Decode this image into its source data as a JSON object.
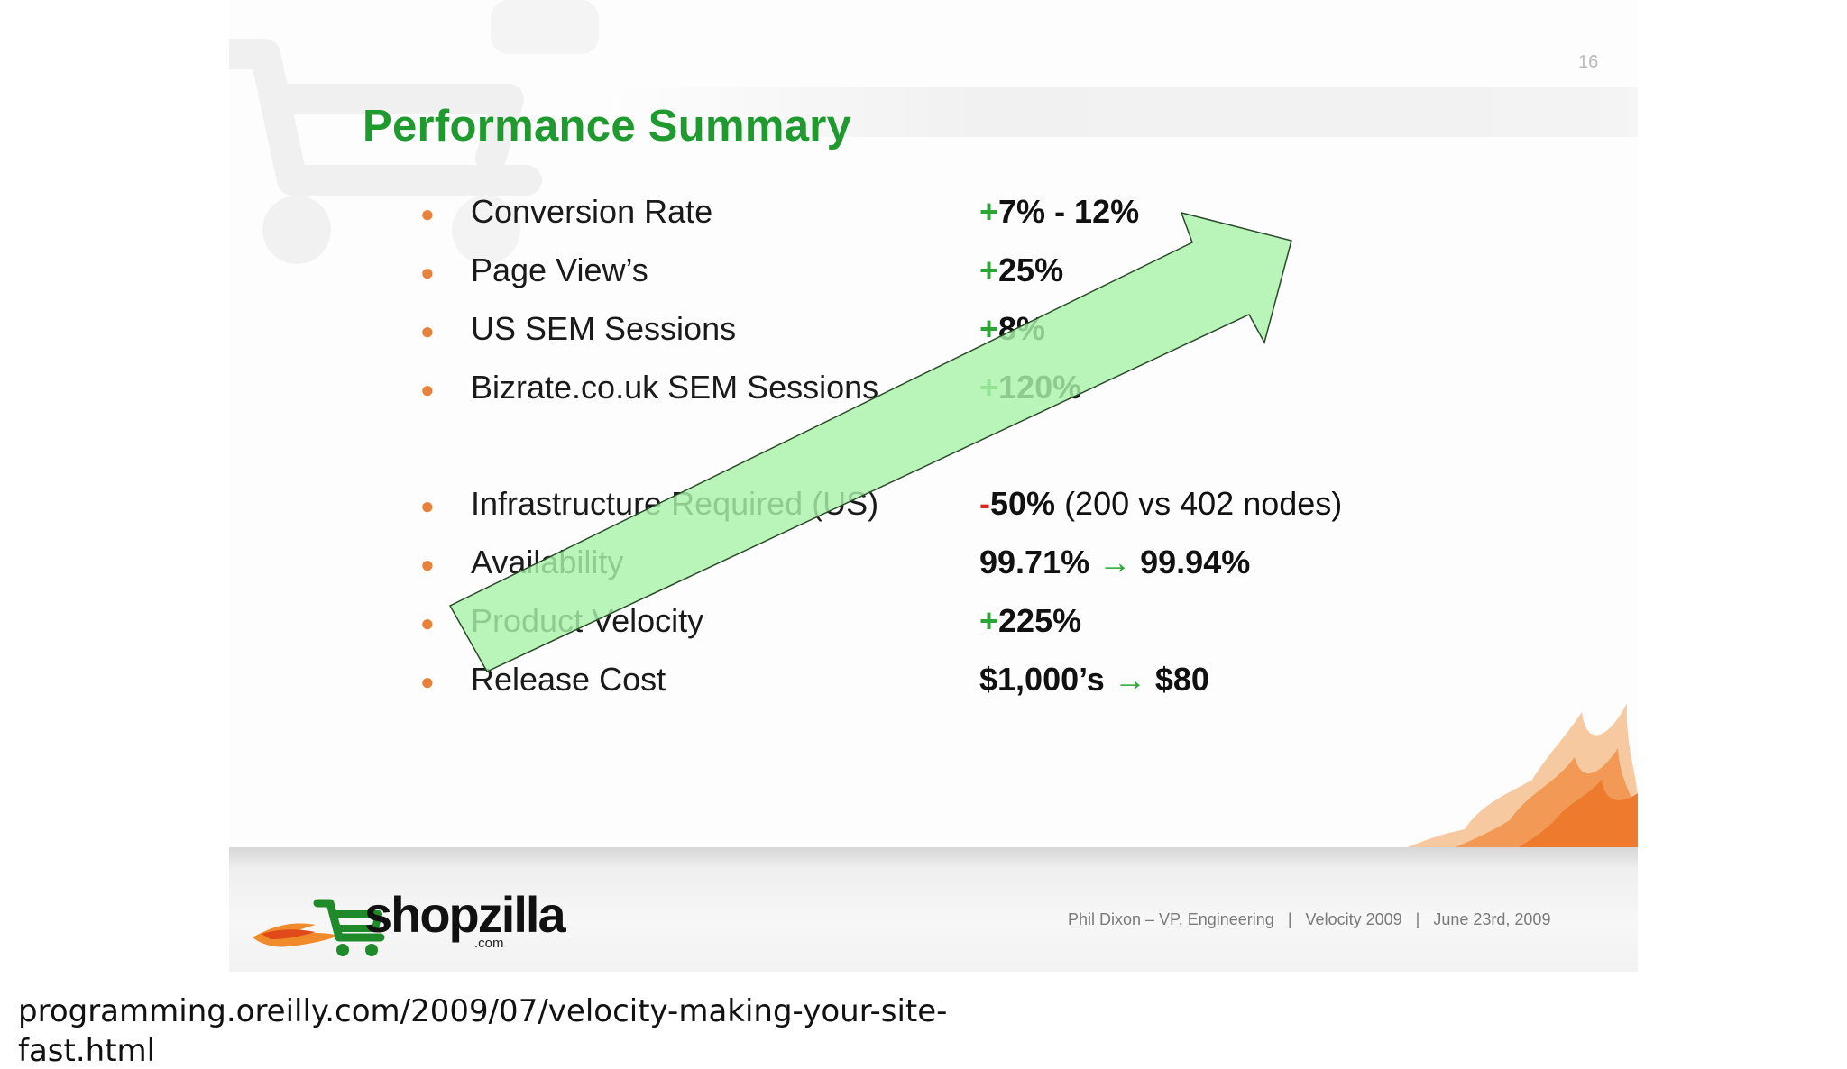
{
  "slide": {
    "page_number": "16",
    "title": "Performance Summary",
    "items": [
      {
        "label": "Conversion Rate",
        "sign": "+",
        "value": "7% - 12%",
        "detail": ""
      },
      {
        "label": "Page View’s",
        "sign": "+",
        "value": "25%",
        "detail": ""
      },
      {
        "label": "US SEM Sessions",
        "sign": "+",
        "value": "8%",
        "detail": ""
      },
      {
        "label": "Bizrate.co.uk SEM Sessions",
        "sign": "+",
        "value": "120%",
        "detail": ""
      },
      {
        "label": "Infrastructure Required (US)",
        "sign": "-",
        "value": "50%",
        "detail": " (200 vs 402 nodes)"
      },
      {
        "label": "Availability",
        "from": "99.71%",
        "arrow": "→",
        "to": "99.94%"
      },
      {
        "label": "Product Velocity",
        "sign": "+",
        "value": "225%",
        "detail": ""
      },
      {
        "label": "Release Cost",
        "from": "$1,000’s",
        "arrow": "→",
        "to": "$80"
      }
    ],
    "footer": {
      "brand": "shopzilla",
      "brand_suffix": ".com",
      "presenter": "Phil Dixon – VP, Engineering",
      "separator": "|",
      "event": "Velocity 2009",
      "date": "June 23rd, 2009"
    },
    "colors": {
      "title_green": "#1f9a2e",
      "plus_green": "#2aa632",
      "minus_red": "#d9261c",
      "bullet_orange": "#e8823a",
      "arrow_fill": "#a9f2a9"
    }
  },
  "caption": {
    "line1": "programming.oreilly.com/2009/07/velocity-making-your-site-",
    "line2": "fast.html"
  }
}
